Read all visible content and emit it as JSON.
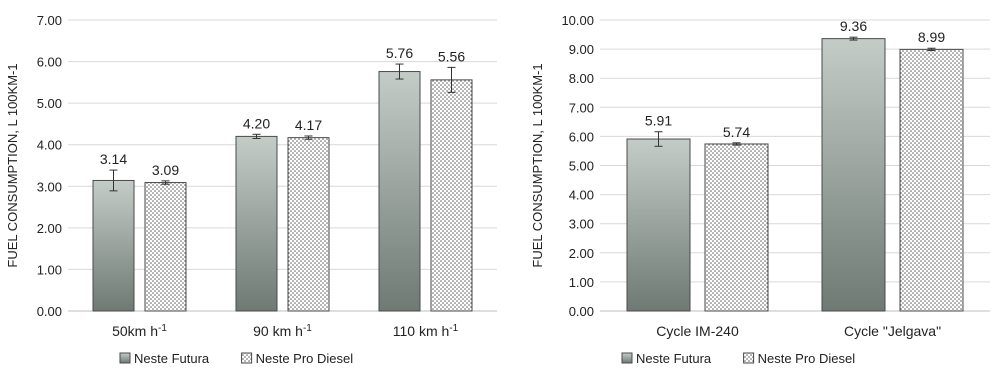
{
  "chart_data": [
    {
      "type": "bar",
      "title": "",
      "ylabel": "FUEL CONSUMPTION, L 100KM-1",
      "ylim": [
        0,
        7
      ],
      "yticks": [
        "0.00",
        "1.00",
        "2.00",
        "3.00",
        "4.00",
        "5.00",
        "6.00",
        "7.00"
      ],
      "grid": true,
      "legend_position": "bottom",
      "categories": [
        {
          "main": "50km h",
          "sup": "-1"
        },
        {
          "main": "90 km h",
          "sup": "-1"
        },
        {
          "main": "110 km h",
          "sup": "-1"
        }
      ],
      "series": [
        {
          "name": "Neste Futura",
          "values": [
            3.14,
            4.2,
            5.76
          ],
          "labels": [
            "3.14",
            "4.20",
            "5.76"
          ],
          "errors": [
            0.25,
            0.05,
            0.18
          ],
          "fill": "gradient"
        },
        {
          "name": "Neste Pro Diesel",
          "values": [
            3.09,
            4.17,
            5.56
          ],
          "labels": [
            "3.09",
            "4.17",
            "5.56"
          ],
          "errors": [
            0.04,
            0.04,
            0.3
          ],
          "fill": "dots"
        }
      ]
    },
    {
      "type": "bar",
      "title": "",
      "ylabel": "FUEL CONSUMPTION, L 100KM-1",
      "ylim": [
        0,
        10
      ],
      "yticks": [
        "0.00",
        "1.00",
        "2.00",
        "3.00",
        "4.00",
        "5.00",
        "6.00",
        "7.00",
        "8.00",
        "9.00",
        "10.00"
      ],
      "grid": true,
      "legend_position": "bottom",
      "categories": [
        {
          "main": "Cycle IM-240",
          "sup": ""
        },
        {
          "main": "Cycle \"Jelgava\"",
          "sup": ""
        }
      ],
      "series": [
        {
          "name": "Neste Futura",
          "values": [
            5.91,
            9.36
          ],
          "labels": [
            "5.91",
            "9.36"
          ],
          "errors": [
            0.25,
            0.05
          ],
          "fill": "gradient"
        },
        {
          "name": "Neste Pro Diesel",
          "values": [
            5.74,
            8.99
          ],
          "labels": [
            "5.74",
            "8.99"
          ],
          "errors": [
            0.04,
            0.04
          ],
          "fill": "dots"
        }
      ]
    }
  ],
  "colors": {
    "bar_dark": "#7b8680",
    "bar_light": "#c4ccc8",
    "gridline": "#d9d9d9",
    "axis": "#bfbfbf",
    "dot": "#555555"
  }
}
